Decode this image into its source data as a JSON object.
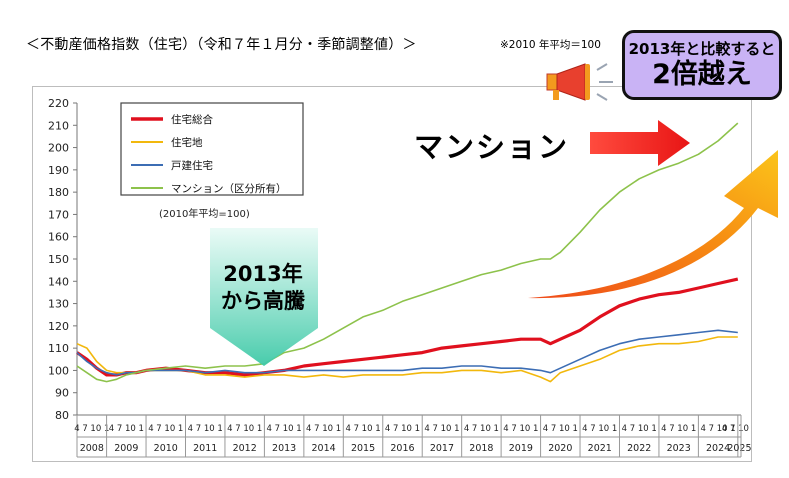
{
  "title": "＜不動産価格指数（住宅）（令和７年１月分・季節調整値）＞",
  "note": "※2010 年平均＝100",
  "badge": {
    "line1": "2013年と比較すると",
    "line2": "2倍越え"
  },
  "callouts": {
    "mansion": "マンション",
    "from2013_line1": "2013年",
    "from2013_line2": "から高騰"
  },
  "chart_data": {
    "type": "line",
    "ylim": [
      80,
      220
    ],
    "yticks": [
      80,
      90,
      100,
      110,
      120,
      130,
      140,
      150,
      160,
      170,
      180,
      190,
      200,
      210,
      220
    ],
    "xlim": [
      2008.25,
      2025.08
    ],
    "years": [
      "2008",
      "2009",
      "2010",
      "2011",
      "2012",
      "2013",
      "2014",
      "2015",
      "2016",
      "2017",
      "2018",
      "2019",
      "2020",
      "2021",
      "2022",
      "2023",
      "2024",
      "2025"
    ],
    "month_tick_label": "4 7 10 1",
    "baseline_note": "(2010年平均=100)",
    "legend_position": "top-left",
    "grid": false,
    "series": [
      {
        "name": "住宅総合",
        "color": "#e0101e",
        "x": [
          2008.25,
          2008.5,
          2008.75,
          2009.0,
          2009.25,
          2009.5,
          2009.75,
          2010.0,
          2010.5,
          2011.0,
          2011.5,
          2012.0,
          2012.5,
          2013.0,
          2013.5,
          2014.0,
          2014.5,
          2015.0,
          2015.5,
          2016.0,
          2016.5,
          2017.0,
          2017.5,
          2018.0,
          2018.5,
          2019.0,
          2019.5,
          2020.0,
          2020.25,
          2020.5,
          2021.0,
          2021.5,
          2022.0,
          2022.5,
          2023.0,
          2023.5,
          2024.0,
          2024.5,
          2025.0
        ],
        "y": [
          108,
          105,
          101,
          98,
          98,
          99,
          99,
          100,
          101,
          100,
          99,
          99,
          98,
          99,
          100,
          102,
          103,
          104,
          105,
          106,
          107,
          108,
          110,
          111,
          112,
          113,
          114,
          114,
          112,
          114,
          118,
          124,
          129,
          132,
          134,
          135,
          137,
          139,
          141
        ]
      },
      {
        "name": "住宅地",
        "color": "#f2b80d",
        "x": [
          2008.25,
          2008.5,
          2008.75,
          2009.0,
          2009.25,
          2009.5,
          2009.75,
          2010.0,
          2010.5,
          2011.0,
          2011.5,
          2012.0,
          2012.5,
          2013.0,
          2013.5,
          2014.0,
          2014.5,
          2015.0,
          2015.5,
          2016.0,
          2016.5,
          2017.0,
          2017.5,
          2018.0,
          2018.5,
          2019.0,
          2019.5,
          2020.0,
          2020.25,
          2020.5,
          2021.0,
          2021.5,
          2022.0,
          2022.5,
          2023.0,
          2023.5,
          2024.0,
          2024.5,
          2025.0
        ],
        "y": [
          112,
          110,
          104,
          100,
          99,
          99,
          99,
          100,
          100,
          100,
          98,
          98,
          97,
          98,
          98,
          97,
          98,
          97,
          98,
          98,
          98,
          99,
          99,
          100,
          100,
          99,
          100,
          97,
          95,
          99,
          102,
          105,
          109,
          111,
          112,
          112,
          113,
          115,
          115
        ]
      },
      {
        "name": "戸建住宅",
        "color": "#3c6db4",
        "x": [
          2008.25,
          2008.5,
          2008.75,
          2009.0,
          2009.25,
          2009.5,
          2009.75,
          2010.0,
          2010.5,
          2011.0,
          2011.5,
          2012.0,
          2012.5,
          2013.0,
          2013.5,
          2014.0,
          2014.5,
          2015.0,
          2015.5,
          2016.0,
          2016.5,
          2017.0,
          2017.5,
          2018.0,
          2018.5,
          2019.0,
          2019.5,
          2020.0,
          2020.25,
          2020.5,
          2021.0,
          2021.5,
          2022.0,
          2022.5,
          2023.0,
          2023.5,
          2024.0,
          2024.5,
          2025.0
        ],
        "y": [
          108,
          104,
          101,
          99,
          98,
          99,
          99,
          100,
          100,
          100,
          99,
          100,
          99,
          99,
          100,
          100,
          100,
          100,
          100,
          100,
          100,
          101,
          101,
          102,
          102,
          101,
          101,
          100,
          99,
          101,
          105,
          109,
          112,
          114,
          115,
          116,
          117,
          118,
          117
        ]
      },
      {
        "name": "マンション（区分所有）",
        "color": "#8dc24b",
        "x": [
          2008.25,
          2008.5,
          2008.75,
          2009.0,
          2009.25,
          2009.5,
          2009.75,
          2010.0,
          2010.5,
          2011.0,
          2011.5,
          2012.0,
          2012.5,
          2013.0,
          2013.5,
          2014.0,
          2014.5,
          2015.0,
          2015.5,
          2016.0,
          2016.5,
          2017.0,
          2017.5,
          2018.0,
          2018.5,
          2019.0,
          2019.5,
          2020.0,
          2020.25,
          2020.5,
          2021.0,
          2021.5,
          2022.0,
          2022.5,
          2023.0,
          2023.5,
          2024.0,
          2024.5,
          2025.0
        ],
        "y": [
          102,
          99,
          96,
          95,
          96,
          98,
          99,
          100,
          101,
          102,
          101,
          102,
          102,
          103,
          108,
          110,
          114,
          119,
          124,
          127,
          131,
          134,
          137,
          140,
          143,
          145,
          148,
          150,
          150,
          153,
          162,
          172,
          180,
          186,
          190,
          193,
          197,
          203,
          211
        ]
      }
    ]
  }
}
